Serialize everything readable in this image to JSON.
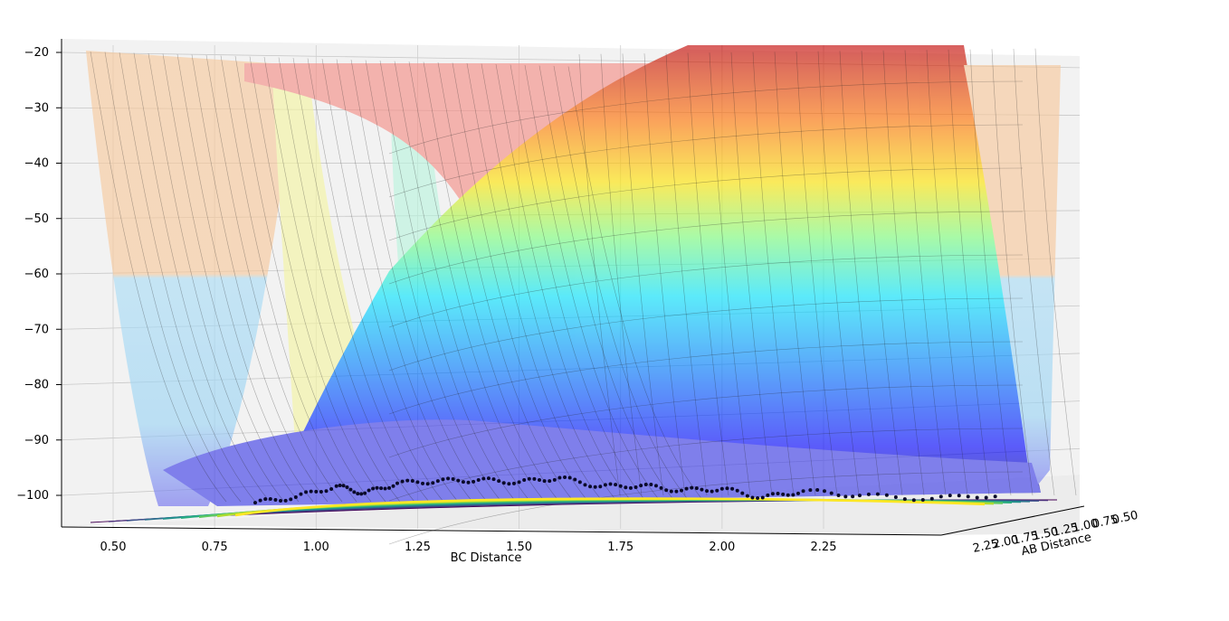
{
  "chart_data": {
    "type": "surface3d",
    "x_axis": {
      "label": "BC Distance",
      "ticks": [
        0.5,
        0.75,
        1.0,
        1.25,
        1.5,
        1.75,
        2.0,
        2.25
      ],
      "tick_labels": [
        "0.50",
        "0.75",
        "1.00",
        "1.25",
        "1.50",
        "1.75",
        "2.00",
        "2.25"
      ],
      "range": [
        0.45,
        2.5
      ]
    },
    "y_axis": {
      "label": "AB Distance",
      "ticks": [
        0.5,
        0.75,
        1.0,
        1.25,
        1.5,
        1.75,
        2.0,
        2.25
      ],
      "tick_labels": [
        "0.50",
        "0.75",
        "1.00",
        "1.25",
        "1.50",
        "1.75",
        "2.00",
        "2.25"
      ],
      "range": [
        0.45,
        2.5
      ]
    },
    "z_axis": {
      "ticks": [
        -20,
        -30,
        -40,
        -50,
        -60,
        -70,
        -80,
        -90,
        -100
      ],
      "tick_labels": [
        "−20",
        "−30",
        "−40",
        "−50",
        "−60",
        "−70",
        "−80",
        "−90",
        "−100"
      ],
      "range": [
        -105,
        -18
      ]
    },
    "surface": {
      "colormap": "jet",
      "alpha": 0.4,
      "z_min": -104,
      "z_max": -21
    },
    "contour": {
      "colormap": "viridis",
      "projected_to": "z_floor"
    },
    "trajectory": {
      "marker": "dot",
      "color": "#0b0b2a",
      "points": [
        {
          "bc": 0.85,
          "z": -100.5
        },
        {
          "bc": 0.95,
          "z": -99.5
        },
        {
          "bc": 1.05,
          "z": -97.5
        },
        {
          "bc": 1.12,
          "z": -98.8
        },
        {
          "bc": 1.2,
          "z": -97.0
        },
        {
          "bc": 1.3,
          "z": -96.6
        },
        {
          "bc": 1.4,
          "z": -96.4
        },
        {
          "bc": 1.5,
          "z": -96.8
        },
        {
          "bc": 1.6,
          "z": -96.0
        },
        {
          "bc": 1.7,
          "z": -97.6
        },
        {
          "bc": 1.8,
          "z": -97.4
        },
        {
          "bc": 1.9,
          "z": -98.3
        },
        {
          "bc": 2.0,
          "z": -98.0
        },
        {
          "bc": 2.1,
          "z": -99.6
        },
        {
          "bc": 2.2,
          "z": -98.4
        },
        {
          "bc": 2.3,
          "z": -99.2
        },
        {
          "bc": 2.4,
          "z": -99.8
        },
        {
          "bc": 2.5,
          "z": -99.0
        }
      ]
    },
    "grid": true,
    "legend": "none"
  }
}
